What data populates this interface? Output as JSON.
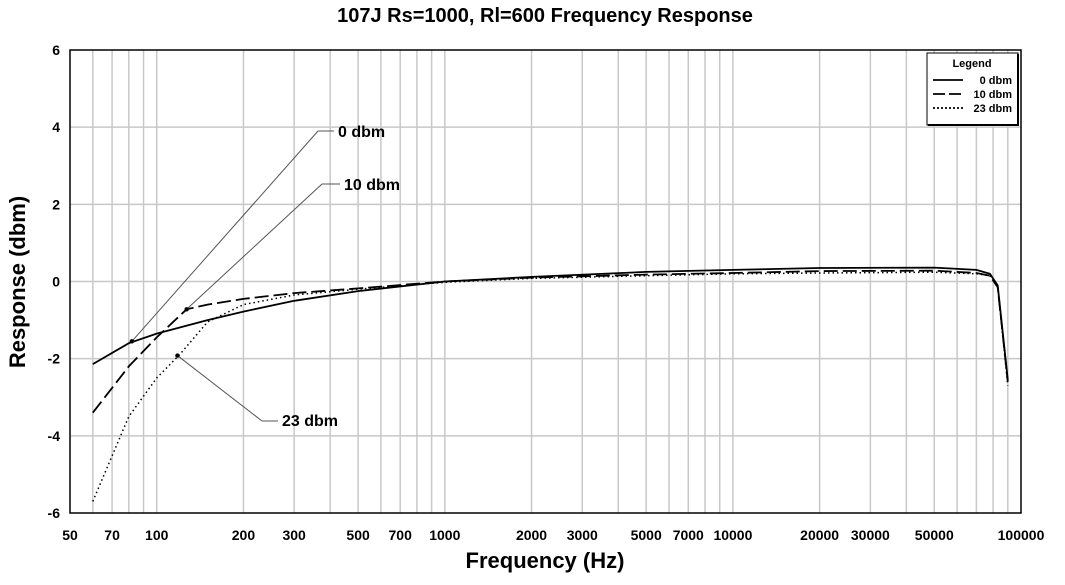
{
  "chart_data": {
    "type": "line",
    "title": "107J Rs=1000, Rl=600 Frequency Response",
    "xlabel": "Frequency (Hz)",
    "ylabel": "Response (dbm)",
    "xscale": "log",
    "xlim": [
      50,
      100000
    ],
    "ylim": [
      -6,
      6
    ],
    "grid": true,
    "x_ticks": [
      50,
      70,
      100,
      200,
      300,
      500,
      700,
      1000,
      2000,
      3000,
      5000,
      7000,
      10000,
      20000,
      30000,
      50000,
      100000
    ],
    "x_tick_labels": [
      "50",
      "70",
      "100",
      "200",
      "300",
      "500",
      "700",
      "1000",
      "2000",
      "3000",
      "5000",
      "7000",
      "10000",
      "20000",
      "30000",
      "50000",
      "100000"
    ],
    "y_ticks": [
      -6,
      -4,
      -2,
      0,
      2,
      4,
      6
    ],
    "y_tick_labels": [
      "-6",
      "-4",
      "-2",
      "0",
      "2",
      "4",
      "6"
    ],
    "legend": {
      "title": "Legend",
      "placement": "top-right"
    },
    "series": [
      {
        "name": "0 dbm",
        "style": "solid",
        "x": [
          60,
          80,
          100,
          150,
          200,
          300,
          500,
          1000,
          2000,
          5000,
          10000,
          20000,
          50000,
          70000,
          78000,
          83000,
          90000
        ],
        "y": [
          -2.14,
          -1.6,
          -1.35,
          -1.0,
          -0.78,
          -0.5,
          -0.25,
          0,
          0.12,
          0.25,
          0.3,
          0.35,
          0.36,
          0.3,
          0.2,
          -0.1,
          -2.55
        ]
      },
      {
        "name": "10 dbm",
        "style": "dashed",
        "x": [
          60,
          80,
          100,
          127,
          150,
          200,
          300,
          500,
          1000,
          2000,
          5000,
          10000,
          20000,
          50000,
          70000,
          78000,
          83000,
          90000
        ],
        "y": [
          -3.4,
          -2.2,
          -1.45,
          -0.72,
          -0.6,
          -0.45,
          -0.3,
          -0.18,
          0,
          0.1,
          0.18,
          0.22,
          0.27,
          0.28,
          0.22,
          0.15,
          -0.15,
          -2.6
        ]
      },
      {
        "name": "23 dbm",
        "style": "dotted",
        "x": [
          60,
          80,
          100,
          120,
          150,
          200,
          300,
          500,
          1000,
          2000,
          5000,
          10000,
          20000,
          50000,
          70000,
          78000,
          83000,
          90000
        ],
        "y": [
          -5.7,
          -3.5,
          -2.5,
          -1.9,
          -1.05,
          -0.6,
          -0.35,
          -0.2,
          -0.02,
          0.08,
          0.15,
          0.2,
          0.22,
          0.24,
          0.2,
          0.15,
          -0.15,
          -2.7
        ]
      }
    ],
    "annotations": [
      {
        "text": "0 dbm",
        "x": 82,
        "y": -1.55
      },
      {
        "text": "10 dbm",
        "x": 127,
        "y": -0.72
      },
      {
        "text": "23 dbm",
        "x": 118,
        "y": -1.92
      }
    ],
    "colors": {
      "lines": "#000000",
      "grid": "#c8c8c8"
    }
  }
}
